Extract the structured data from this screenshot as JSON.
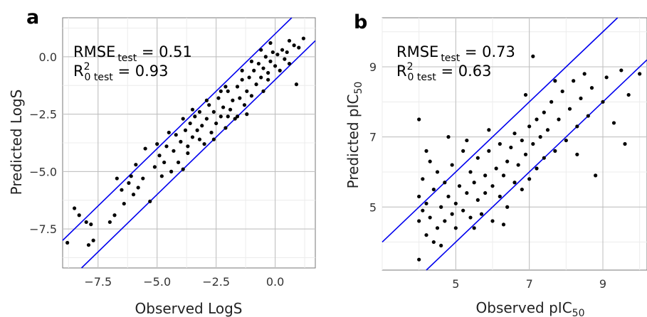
{
  "chart_data": [
    {
      "type": "scatter",
      "panel_label": "a",
      "xlabel": "Observed LogS",
      "ylabel": "Predicted LogS",
      "xlim": [
        -9.0,
        1.7
      ],
      "ylim": [
        -9.2,
        1.7
      ],
      "xticks": [
        -7.5,
        -5.0,
        -2.5,
        0.0
      ],
      "yticks": [
        -7.5,
        -5.0,
        -2.5,
        0.0
      ],
      "xtick_labels": [
        "−7.5",
        "−5.0",
        "−2.5",
        "0.0"
      ],
      "ytick_labels": [
        "−7.5",
        "−5.0",
        "−2.5",
        "0.0"
      ],
      "grid": true,
      "annotations": {
        "rmse_main": "RMSE",
        "rmse_sub": "test",
        "rmse_value": " = 0.51",
        "r2_main": "R",
        "r2_sup": "2",
        "r2_sub": "0 test",
        "r2_value": " = 0.93"
      },
      "reference_lines": [
        {
          "intercept": 1.0,
          "slope": 1,
          "color": "#0000ee"
        },
        {
          "intercept": -1.0,
          "slope": 1,
          "color": "#0000ee"
        }
      ],
      "points": [
        [
          -8.8,
          -8.1
        ],
        [
          -8.5,
          -6.6
        ],
        [
          -8.3,
          -6.9
        ],
        [
          -8.0,
          -7.2
        ],
        [
          -7.9,
          -8.2
        ],
        [
          -7.8,
          -7.3
        ],
        [
          -7.7,
          -8.0
        ],
        [
          -7.0,
          -7.2
        ],
        [
          -6.8,
          -6.9
        ],
        [
          -6.7,
          -5.3
        ],
        [
          -6.5,
          -5.8
        ],
        [
          -6.2,
          -5.5
        ],
        [
          -6.0,
          -6.0
        ],
        [
          -6.1,
          -5.2
        ],
        [
          -5.8,
          -5.7
        ],
        [
          -5.6,
          -5.3
        ],
        [
          -5.3,
          -6.3
        ],
        [
          -5.1,
          -4.8
        ],
        [
          -5.0,
          -3.8
        ],
        [
          -4.9,
          -4.3
        ],
        [
          -4.7,
          -4.6
        ],
        [
          -4.6,
          -3.9
        ],
        [
          -4.4,
          -5.0
        ],
        [
          -4.3,
          -4.1
        ],
        [
          -4.2,
          -3.4
        ],
        [
          -4.1,
          -4.6
        ],
        [
          -4.0,
          -3.7
        ],
        [
          -3.9,
          -4.9
        ],
        [
          -3.8,
          -3.2
        ],
        [
          -3.7,
          -3.9
        ],
        [
          -3.6,
          -2.9
        ],
        [
          -3.5,
          -3.5
        ],
        [
          -3.4,
          -2.6
        ],
        [
          -3.3,
          -3.2
        ],
        [
          -3.2,
          -2.4
        ],
        [
          -3.1,
          -3.0
        ],
        [
          -3.0,
          -3.8
        ],
        [
          -2.9,
          -2.7
        ],
        [
          -2.8,
          -2.1
        ],
        [
          -2.7,
          -3.3
        ],
        [
          -2.6,
          -2.4
        ],
        [
          -2.5,
          -2.9
        ],
        [
          -2.4,
          -1.8
        ],
        [
          -2.3,
          -2.6
        ],
        [
          -2.2,
          -2.2
        ],
        [
          -2.1,
          -3.1
        ],
        [
          -2.0,
          -1.5
        ],
        [
          -1.9,
          -2.3
        ],
        [
          -1.8,
          -1.9
        ],
        [
          -1.7,
          -2.7
        ],
        [
          -1.6,
          -1.3
        ],
        [
          -1.5,
          -1.8
        ],
        [
          -1.4,
          -1.0
        ],
        [
          -1.3,
          -2.1
        ],
        [
          -1.2,
          -1.5
        ],
        [
          -1.1,
          -0.9
        ],
        [
          -1.0,
          -1.7
        ],
        [
          -0.9,
          -0.6
        ],
        [
          -0.8,
          -1.2
        ],
        [
          -0.7,
          -0.3
        ],
        [
          -0.6,
          -0.9
        ],
        [
          -0.5,
          -0.5
        ],
        [
          -0.4,
          0.0
        ],
        [
          -0.3,
          -0.7
        ],
        [
          -0.2,
          -0.2
        ],
        [
          -0.1,
          0.2
        ],
        [
          0.0,
          -0.4
        ],
        [
          0.1,
          0.1
        ],
        [
          0.2,
          -0.6
        ],
        [
          0.3,
          0.3
        ],
        [
          0.4,
          -0.1
        ],
        [
          0.5,
          0.2
        ],
        [
          0.6,
          -0.3
        ],
        [
          0.8,
          0.5
        ],
        [
          0.9,
          -1.2
        ],
        [
          1.0,
          0.4
        ],
        [
          1.2,
          0.8
        ],
        [
          -3.5,
          -2.3
        ],
        [
          -2.9,
          -1.9
        ],
        [
          -2.1,
          -1.3
        ],
        [
          -1.4,
          -0.6
        ],
        [
          -0.6,
          0.3
        ],
        [
          -4.5,
          -3.3
        ],
        [
          -3.7,
          -4.2
        ],
        [
          -2.6,
          -3.6
        ],
        [
          -1.6,
          -2.6
        ],
        [
          -0.5,
          -1.5
        ],
        [
          -4.8,
          -5.2
        ],
        [
          -3.9,
          -2.7
        ],
        [
          -2.3,
          -1.5
        ],
        [
          -1.0,
          -0.2
        ],
        [
          -0.2,
          0.6
        ],
        [
          -5.5,
          -4.0
        ],
        [
          -6.4,
          -6.4
        ],
        [
          -5.9,
          -4.7
        ],
        [
          -2.0,
          -2.6
        ],
        [
          -1.2,
          -2.5
        ],
        [
          -0.3,
          -1.0
        ],
        [
          0.6,
          0.7
        ],
        [
          -3.2,
          -3.6
        ]
      ]
    },
    {
      "type": "scatter",
      "panel_label": "b",
      "xlabel_main": "Observed  pIC",
      "xlabel_sub": "50",
      "ylabel_main": "Predicted pIC",
      "ylabel_sub": "50",
      "xlim": [
        3.0,
        10.2
      ],
      "ylim": [
        3.2,
        10.4
      ],
      "xticks": [
        5,
        7,
        9
      ],
      "yticks": [
        5,
        7,
        9
      ],
      "xtick_labels": [
        "5",
        "7",
        "9"
      ],
      "ytick_labels": [
        "5",
        "7",
        "9"
      ],
      "grid": true,
      "annotations": {
        "rmse_main": "RMSE",
        "rmse_sub": "test",
        "rmse_value": " = 0.73",
        "r2_main": "R",
        "r2_sup": "2",
        "r2_sub": "0 test",
        "r2_value": " = 0.63"
      },
      "reference_lines": [
        {
          "intercept": 1.0,
          "slope": 1,
          "color": "#0000ee"
        },
        {
          "intercept": -1.0,
          "slope": 1,
          "color": "#0000ee"
        }
      ],
      "points": [
        [
          4.0,
          3.5
        ],
        [
          4.0,
          4.6
        ],
        [
          4.0,
          5.3
        ],
        [
          4.0,
          7.5
        ],
        [
          4.1,
          4.9
        ],
        [
          4.1,
          5.8
        ],
        [
          4.2,
          4.2
        ],
        [
          4.2,
          5.1
        ],
        [
          4.3,
          6.3
        ],
        [
          4.3,
          4.7
        ],
        [
          4.4,
          5.5
        ],
        [
          4.5,
          4.4
        ],
        [
          4.5,
          6.0
        ],
        [
          4.6,
          5.0
        ],
        [
          4.7,
          4.6
        ],
        [
          4.7,
          5.7
        ],
        [
          4.8,
          5.3
        ],
        [
          4.9,
          4.8
        ],
        [
          4.9,
          6.2
        ],
        [
          5.0,
          5.1
        ],
        [
          5.0,
          4.4
        ],
        [
          5.1,
          5.6
        ],
        [
          5.2,
          6.6
        ],
        [
          5.2,
          4.9
        ],
        [
          5.3,
          5.4
        ],
        [
          5.4,
          6.0
        ],
        [
          5.4,
          4.7
        ],
        [
          5.5,
          5.7
        ],
        [
          5.6,
          5.2
        ],
        [
          5.6,
          6.4
        ],
        [
          5.7,
          4.8
        ],
        [
          5.8,
          5.9
        ],
        [
          5.8,
          5.4
        ],
        [
          5.9,
          6.6
        ],
        [
          6.0,
          5.6
        ],
        [
          6.0,
          4.6
        ],
        [
          6.1,
          6.1
        ],
        [
          6.2,
          5.3
        ],
        [
          6.2,
          6.8
        ],
        [
          6.3,
          5.9
        ],
        [
          6.4,
          6.3
        ],
        [
          6.4,
          5.0
        ],
        [
          6.5,
          6.7
        ],
        [
          6.6,
          5.7
        ],
        [
          6.6,
          7.1
        ],
        [
          6.7,
          6.2
        ],
        [
          6.8,
          6.9
        ],
        [
          6.8,
          5.5
        ],
        [
          6.9,
          6.5
        ],
        [
          7.0,
          7.3
        ],
        [
          7.0,
          5.8
        ],
        [
          7.1,
          6.8
        ],
        [
          7.2,
          7.5
        ],
        [
          7.2,
          6.1
        ],
        [
          7.3,
          7.0
        ],
        [
          7.4,
          7.7
        ],
        [
          7.4,
          6.4
        ],
        [
          7.5,
          7.2
        ],
        [
          7.6,
          8.0
        ],
        [
          7.7,
          6.6
        ],
        [
          7.8,
          7.5
        ],
        [
          7.9,
          8.3
        ],
        [
          8.0,
          6.9
        ],
        [
          8.1,
          7.8
        ],
        [
          8.2,
          8.6
        ],
        [
          8.3,
          7.3
        ],
        [
          8.4,
          8.1
        ],
        [
          8.5,
          8.8
        ],
        [
          8.6,
          7.6
        ],
        [
          8.7,
          8.4
        ],
        [
          8.8,
          5.9
        ],
        [
          9.0,
          8.0
        ],
        [
          9.1,
          8.7
        ],
        [
          9.3,
          7.4
        ],
        [
          9.5,
          8.9
        ],
        [
          9.7,
          8.2
        ],
        [
          10.0,
          8.8
        ],
        [
          7.1,
          9.3
        ],
        [
          4.8,
          7.0
        ],
        [
          5.5,
          4.4
        ],
        [
          6.3,
          4.5
        ],
        [
          4.4,
          4.0
        ],
        [
          5.9,
          7.2
        ],
        [
          8.3,
          6.5
        ],
        [
          9.6,
          6.8
        ],
        [
          4.2,
          6.6
        ],
        [
          6.9,
          8.2
        ],
        [
          5.3,
          6.9
        ],
        [
          7.7,
          8.6
        ],
        [
          4.6,
          3.9
        ]
      ]
    }
  ]
}
